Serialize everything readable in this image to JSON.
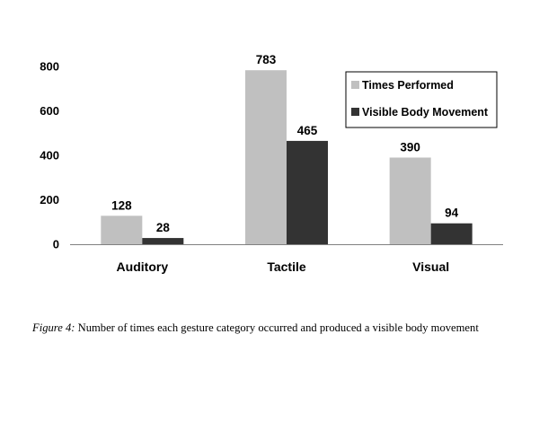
{
  "chart_data": {
    "type": "bar",
    "categories": [
      "Auditory",
      "Tactile",
      "Visual"
    ],
    "series": [
      {
        "name": "Times Performed",
        "values": [
          128,
          783,
          390
        ],
        "color": "#c0c0c0"
      },
      {
        "name": "Visible Body Movement",
        "values": [
          28,
          465,
          94
        ],
        "color": "#333333"
      }
    ],
    "title": "",
    "xlabel": "",
    "ylabel": "",
    "ylim": [
      0,
      800
    ],
    "yticks": [
      0,
      200,
      400,
      600,
      800
    ],
    "grid": false,
    "legend": "top-right",
    "axis_color": "#808080"
  },
  "caption": {
    "label": "Figure 4:",
    "text": " Number of times each gesture category occurred and produced a visible body movement"
  }
}
